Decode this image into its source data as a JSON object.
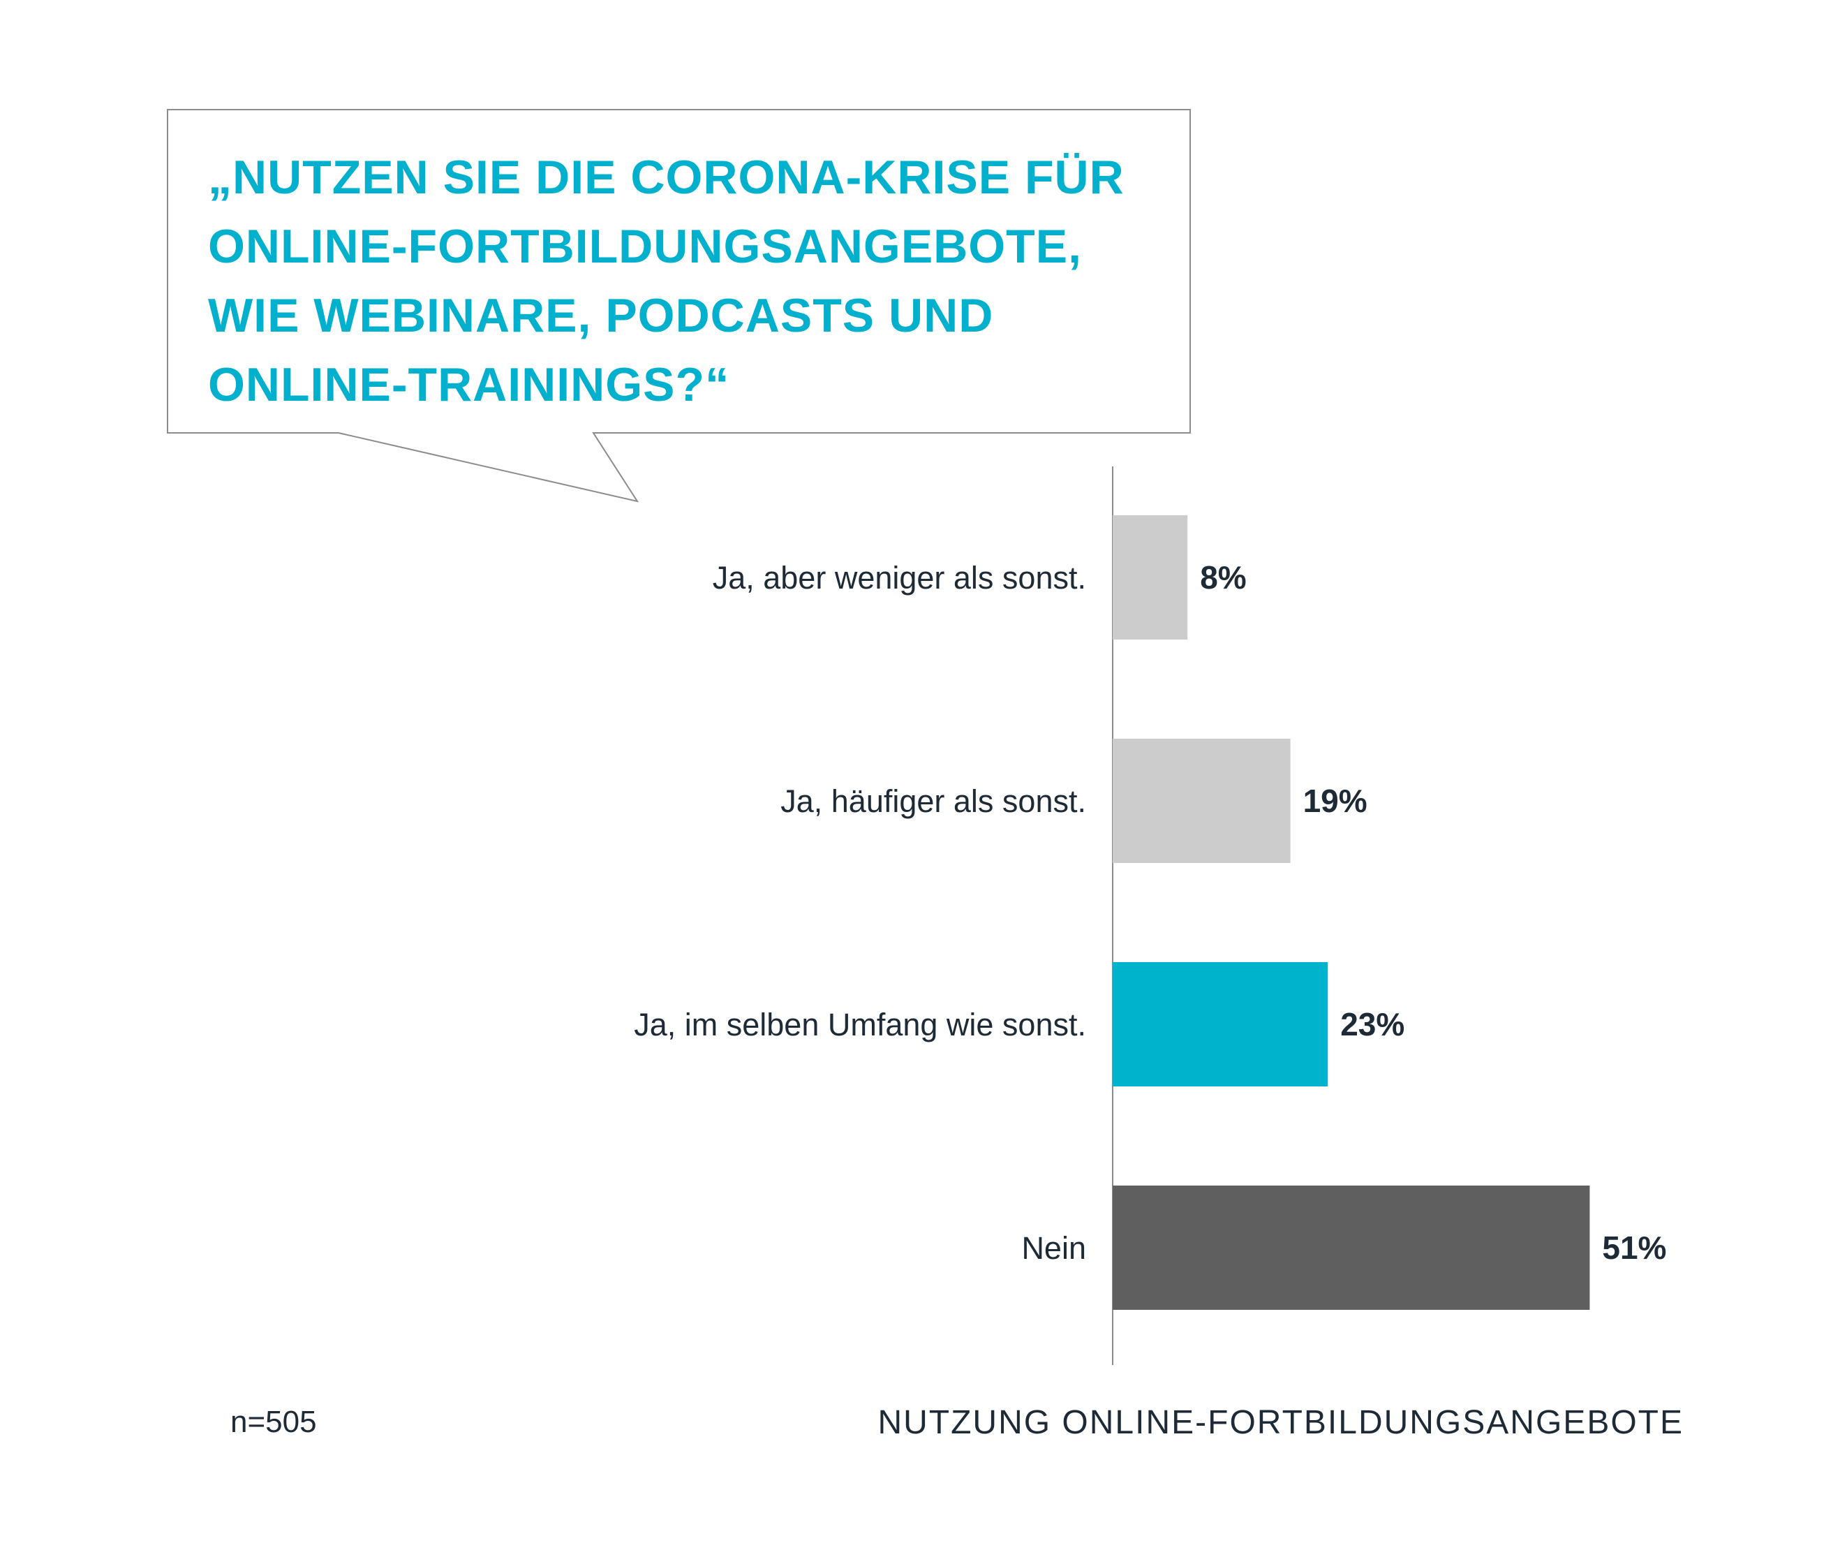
{
  "chart_data": {
    "type": "bar",
    "orientation": "horizontal",
    "question": "„NUTZEN SIE DIE CORONA-KRISE FÜR ONLINE-FORTBILDUNGSANGEBOTE, WIE WEBINARE, PODCASTS UND ONLINE-TRAININGS?“",
    "title": "NUTZUNG ONLINE-FORTBILDUNGSANGEBOTE",
    "note": "n=505",
    "unit": "%",
    "categories": [
      "Ja, aber weniger als sonst.",
      "Ja, häufiger als sonst.",
      "Ja, im selben Umfang wie sonst.",
      "Nein"
    ],
    "values": [
      8,
      19,
      23,
      51
    ],
    "value_labels": [
      "8%",
      "19%",
      "23%",
      "51%"
    ],
    "bar_colors": [
      "#cccccc",
      "#cccccc",
      "#00b3cc",
      "#5f5f5f"
    ],
    "xlim": [
      0,
      100
    ],
    "grid": false,
    "legend": "none"
  },
  "colors": {
    "accent": "#00b0cc",
    "text": "#1e2a36",
    "axis": "#8c8c8c",
    "bubble_border": "#8c8c8c"
  }
}
